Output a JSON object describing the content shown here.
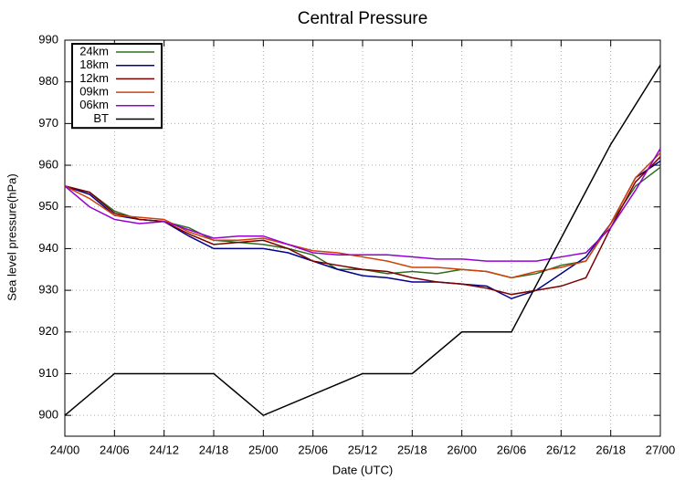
{
  "chart_data": {
    "type": "line",
    "title": "Central Pressure",
    "x_label": "Date (UTC)",
    "y_label": "Sea level pressure(hPa)",
    "x": [
      0,
      3,
      6,
      9,
      12,
      15,
      18,
      21,
      24,
      27,
      30,
      33,
      36,
      39,
      42,
      45,
      48,
      51,
      54,
      57,
      60,
      63,
      66,
      69,
      72
    ],
    "series": [
      {
        "name": "24km",
        "color": "#2e6b1f",
        "values": [
          955,
          953.5,
          949,
          947,
          946.5,
          945,
          942,
          941.5,
          941,
          940,
          938.5,
          935,
          935,
          934,
          934.5,
          934,
          935,
          934.5,
          933,
          934,
          936,
          937,
          946,
          955,
          959.5
        ]
      },
      {
        "name": "18km",
        "color": "#00008b",
        "values": [
          955,
          953,
          948,
          947,
          946.5,
          943,
          940,
          940,
          940,
          939,
          937,
          935,
          933.5,
          933,
          932,
          932,
          931.5,
          931,
          928,
          930,
          934,
          938,
          946,
          957,
          961
        ]
      },
      {
        "name": "12km",
        "color": "#7a0000",
        "values": [
          955,
          953.5,
          948.5,
          947,
          946.5,
          943.5,
          941,
          941.5,
          942,
          940,
          937,
          936,
          935,
          934.5,
          933,
          932,
          931.5,
          930.5,
          929,
          930,
          931,
          933,
          945,
          956,
          962
        ]
      },
      {
        "name": "09km",
        "color": "#d2400a",
        "values": [
          955,
          952,
          948,
          947.5,
          947,
          944,
          942,
          942,
          942.5,
          941,
          939.5,
          939,
          938,
          937,
          935.5,
          935.5,
          935,
          934.5,
          933,
          934.5,
          935.5,
          937,
          946,
          957,
          963
        ]
      },
      {
        "name": "06km",
        "color": "#9400d3",
        "values": [
          955,
          950,
          947,
          946,
          946.5,
          944.5,
          942.5,
          943,
          943,
          941,
          939,
          938.5,
          938.5,
          938.5,
          938,
          937.5,
          937.5,
          937,
          937,
          937,
          938,
          939,
          945,
          954,
          964
        ]
      },
      {
        "name": "BT",
        "color": "#000000",
        "x": [
          0,
          6,
          18,
          24,
          36,
          42,
          48,
          54,
          66,
          72
        ],
        "values": [
          900,
          910,
          910,
          900,
          910,
          910,
          920,
          920,
          965,
          984
        ]
      }
    ],
    "xlim": [
      0,
      72
    ],
    "ylim": [
      895,
      990
    ],
    "xticks": [
      {
        "value": 0,
        "label": "24/00"
      },
      {
        "value": 6,
        "label": "24/06"
      },
      {
        "value": 12,
        "label": "24/12"
      },
      {
        "value": 18,
        "label": "24/18"
      },
      {
        "value": 24,
        "label": "25/00"
      },
      {
        "value": 30,
        "label": "25/06"
      },
      {
        "value": 36,
        "label": "25/12"
      },
      {
        "value": 42,
        "label": "25/18"
      },
      {
        "value": 48,
        "label": "26/00"
      },
      {
        "value": 54,
        "label": "26/06"
      },
      {
        "value": 60,
        "label": "26/12"
      },
      {
        "value": 66,
        "label": "26/18"
      },
      {
        "value": 72,
        "label": "27/00"
      }
    ],
    "yticks": [
      900,
      910,
      920,
      930,
      940,
      950,
      960,
      970,
      980,
      990
    ],
    "grid": true,
    "legend": "upper left"
  }
}
